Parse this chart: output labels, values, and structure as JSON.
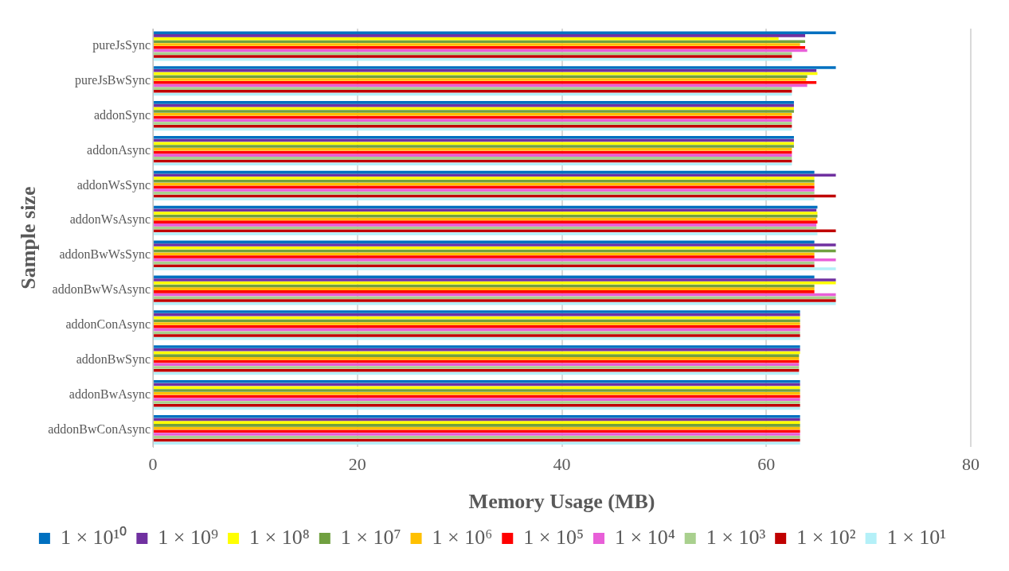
{
  "chart_data": {
    "type": "bar",
    "orientation": "horizontal",
    "xlabel": "Memory Usage (MB)",
    "ylabel": "Sample size",
    "categories": [
      "pureJsSync",
      "pureJsBwSync",
      "addonSync",
      "addonAsync",
      "addonWsSync",
      "addonWsAsync",
      "addonBwWsSync",
      "addonBwWsAsync",
      "addonConAsync",
      "addonBwSync",
      "addonBwAsync",
      "addonBwConAsync"
    ],
    "series": [
      {
        "name": "1 × 10¹⁰",
        "color": "#0070c0",
        "values": [
          66.8,
          66.8,
          62.7,
          62.7,
          64.7,
          65.0,
          64.7,
          64.7,
          63.3,
          63.3,
          63.3,
          63.3
        ]
      },
      {
        "name": "1 × 10⁹",
        "color": "#7030a0",
        "values": [
          63.8,
          64.9,
          62.7,
          62.7,
          66.8,
          64.9,
          66.8,
          66.8,
          63.3,
          63.3,
          63.3,
          63.3
        ]
      },
      {
        "name": "1 × 10⁸",
        "color": "#ffff00",
        "values": [
          61.2,
          65.0,
          62.7,
          62.7,
          64.7,
          65.0,
          64.7,
          66.8,
          63.3,
          63.3,
          63.3,
          63.3
        ]
      },
      {
        "name": "1 × 10⁷",
        "color": "#70a040",
        "values": [
          63.8,
          64.0,
          62.7,
          62.7,
          64.7,
          65.0,
          66.8,
          64.7,
          63.3,
          63.2,
          63.3,
          63.3
        ]
      },
      {
        "name": "1 × 10⁶",
        "color": "#ffc000",
        "values": [
          63.3,
          63.9,
          62.5,
          62.5,
          64.7,
          64.9,
          64.7,
          64.7,
          63.3,
          63.2,
          63.3,
          63.3
        ]
      },
      {
        "name": "1 × 10⁵",
        "color": "#ff0000",
        "values": [
          63.8,
          64.9,
          62.5,
          62.5,
          64.7,
          65.0,
          64.7,
          64.7,
          63.3,
          63.2,
          63.3,
          63.3
        ]
      },
      {
        "name": "1 × 10⁴",
        "color": "#e85fd8",
        "values": [
          64.0,
          64.0,
          62.5,
          62.5,
          64.7,
          64.9,
          66.8,
          66.8,
          63.3,
          63.2,
          63.3,
          63.3
        ]
      },
      {
        "name": "1 × 10³",
        "color": "#a9d08e",
        "values": [
          62.5,
          62.5,
          62.5,
          62.5,
          64.7,
          64.9,
          64.7,
          66.8,
          63.3,
          63.2,
          63.3,
          63.3
        ]
      },
      {
        "name": "1 × 10²",
        "color": "#c00000",
        "values": [
          62.5,
          62.5,
          62.5,
          62.5,
          66.8,
          66.8,
          64.7,
          66.8,
          63.3,
          63.2,
          63.3,
          63.3
        ]
      },
      {
        "name": "1 × 10¹",
        "color": "#b4f0f8",
        "values": [
          62.5,
          62.5,
          62.5,
          62.5,
          64.7,
          65.0,
          66.8,
          66.8,
          63.3,
          63.2,
          63.3,
          63.3
        ]
      }
    ],
    "xlim": [
      0,
      80
    ],
    "xticks": [
      0,
      20,
      40,
      60,
      80
    ],
    "grid": "x",
    "legend": "bottom"
  }
}
